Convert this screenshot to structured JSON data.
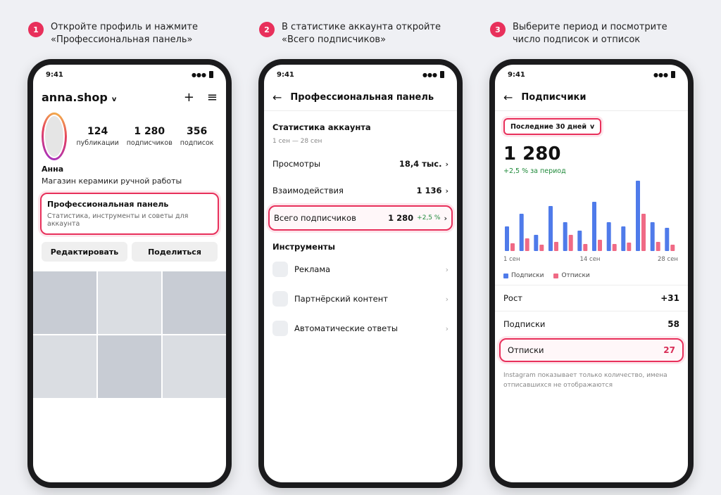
{
  "steps": [
    {
      "num": "1",
      "text": "Откройте профиль и нажмите «Профессиональная панель»"
    },
    {
      "num": "2",
      "text": "В статистике аккаунта откройте «Всего подписчиков»"
    },
    {
      "num": "3",
      "text": "Выберите период и посмотрите число подписок и отписок"
    }
  ],
  "status_time": "9:41",
  "accent": "#e8305b",
  "profile": {
    "username": "anna.shop",
    "chevron": "v",
    "stats": [
      {
        "value": "124",
        "label": "публикации"
      },
      {
        "value": "1 280",
        "label": "подписчиков"
      },
      {
        "value": "356",
        "label": "подписок"
      }
    ],
    "name": "Анна",
    "bio": "Магазин керамики ручной работы",
    "pro_title": "Профессиональная панель",
    "pro_sub": "Статистика, инструменты и советы для аккаунта",
    "edit_label": "Редактировать",
    "share_label": "Поделиться"
  },
  "dashboard": {
    "title": "Профессиональная панель",
    "section": "Статистика аккаунта",
    "range": "1 сен — 28 сен",
    "rows": [
      {
        "label": "Просмотры",
        "value": "18,4 тыс."
      },
      {
        "label": "Взаимодействия",
        "value": "1 136"
      }
    ],
    "followers_label": "Всего подписчиков",
    "followers_value": "1 280",
    "followers_delta": "+2,5 %",
    "tools_title": "Инструменты",
    "tools": [
      {
        "label": "Реклама"
      },
      {
        "label": "Партнёрский контент"
      },
      {
        "label": "Автоматические ответы"
      }
    ]
  },
  "followers": {
    "title": "Подписчики",
    "period": "Последние 30 дней",
    "total": "1 280",
    "growth": "+2,5 % за период",
    "legend_follows": "Подписки",
    "legend_unfollows": "Отписки",
    "growth_label": "Рост",
    "growth_value": "+31",
    "follows_label": "Подписки",
    "follows_value": "58",
    "unfollows_label": "Отписки",
    "unfollows_value": "27",
    "note": "Instagram показывает только количество, имена отписавшихся не отображаются",
    "colors": {
      "follows": "#4f7bea",
      "unfollows": "#f06a85"
    }
  },
  "chart_data": {
    "type": "bar",
    "categories": [
      "1",
      "2",
      "3",
      "4",
      "5",
      "6",
      "7",
      "8",
      "9",
      "10",
      "11",
      "12"
    ],
    "x_tick_labels": [
      "1 сен",
      "14 сен",
      "28 сен"
    ],
    "series": [
      {
        "name": "Подписки",
        "values": [
          3.5,
          5.3,
          2.3,
          6.4,
          4.1,
          2.9,
          7.0,
          4.1,
          3.5,
          10.0,
          4.1,
          3.3
        ]
      },
      {
        "name": "Отписки",
        "values": [
          1.1,
          1.8,
          0.9,
          1.3,
          2.3,
          1.0,
          1.6,
          1.0,
          1.2,
          5.3,
          1.3,
          0.9
        ]
      }
    ]
  }
}
